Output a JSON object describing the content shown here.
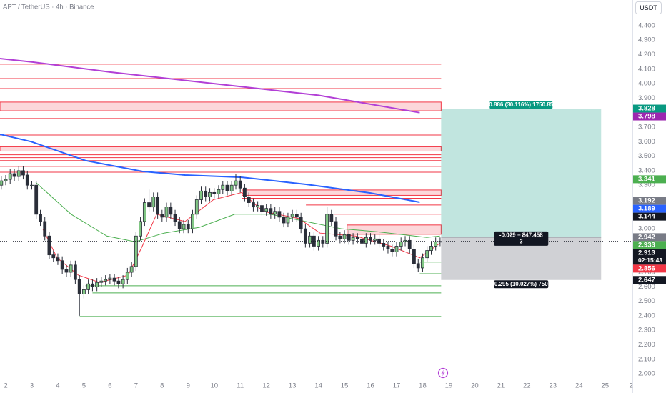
{
  "chart_data": {
    "type": "candlestick",
    "title": "APT / TetherUS · 4h · Binance",
    "currency": "USDT",
    "countdown": "02:15:43",
    "up_color": "#81c784",
    "down_color": "#2a2e39",
    "xlim": [
      1.78,
      26.05
    ],
    "ylim": [
      1.966,
      4.577
    ],
    "grid": false,
    "xticks": [
      2,
      3,
      4,
      5,
      6,
      7,
      8,
      9,
      10,
      11,
      12,
      13,
      14,
      15,
      16,
      17,
      18,
      19,
      20,
      21,
      22,
      23,
      24,
      25,
      {
        "value": 26,
        "label": "2"
      }
    ],
    "yticks": [
      {
        "value": 2.0,
        "label": "2.000"
      },
      {
        "value": 2.1,
        "label": "2.100"
      },
      {
        "value": 2.2,
        "label": "2.200"
      },
      {
        "value": 2.3,
        "label": "2.300"
      },
      {
        "value": 2.4,
        "label": "2.400"
      },
      {
        "value": 2.5,
        "label": "2.500"
      },
      {
        "value": 2.6,
        "label": "2.600"
      },
      {
        "value": 2.7,
        "label": "2.700"
      },
      {
        "value": 2.8,
        "label": "2.800"
      },
      {
        "value": 2.9,
        "label": "2.900"
      },
      {
        "value": 3.0,
        "label": "3.000"
      },
      {
        "value": 3.1,
        "label": "3.100"
      },
      {
        "value": 3.2,
        "label": "3.200"
      },
      {
        "value": 3.3,
        "label": "3.300"
      },
      {
        "value": 3.4,
        "label": "3.400"
      },
      {
        "value": 3.5,
        "label": "3.500"
      },
      {
        "value": 3.6,
        "label": "3.600"
      },
      {
        "value": 3.7,
        "label": "3.700"
      },
      {
        "value": 3.8,
        "label": "3.800"
      },
      {
        "value": 3.9,
        "label": "3.900"
      },
      {
        "value": 4.0,
        "label": "4.000"
      },
      {
        "value": 4.1,
        "label": "4.100"
      },
      {
        "value": 4.2,
        "label": "4.200"
      },
      {
        "value": 4.3,
        "label": "4.300"
      },
      {
        "value": 4.4,
        "label": "4.400"
      }
    ],
    "x": [
      1.83,
      2,
      2.17,
      2.33,
      2.5,
      2.67,
      2.83,
      3,
      3.17,
      3.33,
      3.5,
      3.67,
      3.83,
      4,
      4.17,
      4.33,
      4.5,
      4.67,
      4.83,
      5,
      5.17,
      5.33,
      5.5,
      5.67,
      5.83,
      6,
      6.17,
      6.33,
      6.5,
      6.67,
      6.83,
      7,
      7.17,
      7.33,
      7.5,
      7.67,
      7.83,
      8,
      8.17,
      8.33,
      8.5,
      8.67,
      8.83,
      9,
      9.17,
      9.33,
      9.5,
      9.67,
      9.83,
      10,
      10.17,
      10.33,
      10.5,
      10.67,
      10.83,
      11,
      11.17,
      11.33,
      11.5,
      11.67,
      11.83,
      12,
      12.17,
      12.33,
      12.5,
      12.67,
      12.83,
      13,
      13.17,
      13.33,
      13.5,
      13.67,
      13.83,
      14,
      14.17,
      14.33,
      14.5,
      14.67,
      14.83,
      15,
      15.17,
      15.33,
      15.5,
      15.67,
      15.83,
      16,
      16.17,
      16.33,
      16.5,
      16.67,
      16.83,
      17,
      17.17,
      17.33,
      17.5,
      17.67,
      17.83,
      18,
      18.17,
      18.33,
      18.5,
      18.67
    ],
    "open": [
      3.3,
      3.33,
      3.34,
      3.38,
      3.36,
      3.4,
      3.37,
      3.3,
      3.3,
      3.1,
      3.05,
      2.95,
      2.82,
      2.8,
      2.78,
      2.72,
      2.7,
      2.75,
      2.65,
      2.55,
      2.58,
      2.62,
      2.6,
      2.63,
      2.64,
      2.65,
      2.66,
      2.64,
      2.62,
      2.65,
      2.7,
      2.74,
      2.95,
      3.05,
      3.18,
      3.15,
      3.22,
      3.1,
      3.08,
      3.15,
      3.1,
      3.05,
      3.0,
      3.03,
      3.0,
      3.1,
      3.2,
      3.26,
      3.22,
      3.25,
      3.24,
      3.27,
      3.3,
      3.26,
      3.3,
      3.33,
      3.28,
      3.22,
      3.18,
      3.15,
      3.16,
      3.12,
      3.14,
      3.1,
      3.12,
      3.08,
      3.04,
      3.08,
      3.1,
      3.08,
      3.0,
      2.9,
      2.95,
      2.88,
      2.92,
      2.9,
      3.1,
      3.05,
      2.95,
      2.93,
      2.96,
      2.92,
      2.94,
      2.93,
      2.9,
      2.94,
      2.92,
      2.93,
      2.9,
      2.88,
      2.86,
      2.84,
      2.88,
      2.91,
      2.92,
      2.86,
      2.76,
      2.73,
      2.8,
      2.85,
      2.88,
      2.91
    ],
    "high": [
      3.36,
      3.37,
      3.41,
      3.41,
      3.43,
      3.43,
      3.4,
      3.33,
      3.33,
      3.13,
      3.08,
      2.98,
      2.85,
      2.83,
      2.81,
      2.75,
      2.78,
      2.78,
      2.68,
      2.61,
      2.65,
      2.65,
      2.66,
      2.67,
      2.68,
      2.69,
      2.69,
      2.67,
      2.68,
      2.73,
      2.77,
      2.98,
      3.08,
      3.21,
      3.27,
      3.25,
      3.25,
      3.13,
      3.18,
      3.18,
      3.13,
      3.08,
      3.06,
      3.06,
      3.13,
      3.23,
      3.29,
      3.29,
      3.28,
      3.28,
      3.3,
      3.33,
      3.33,
      3.33,
      3.38,
      3.36,
      3.31,
      3.25,
      3.21,
      3.19,
      3.19,
      3.17,
      3.17,
      3.15,
      3.15,
      3.11,
      3.11,
      3.13,
      3.13,
      3.11,
      3.03,
      2.98,
      2.98,
      2.95,
      2.95,
      3.15,
      3.13,
      3.08,
      2.98,
      2.99,
      2.99,
      2.97,
      2.97,
      2.96,
      2.97,
      2.97,
      2.96,
      2.96,
      2.93,
      2.91,
      2.89,
      2.91,
      2.94,
      2.95,
      2.95,
      2.89,
      2.79,
      2.83,
      2.88,
      2.91,
      2.94,
      2.94
    ],
    "low": [
      3.27,
      3.3,
      3.31,
      3.33,
      3.33,
      3.34,
      3.27,
      3.27,
      3.07,
      3.02,
      2.92,
      2.79,
      2.77,
      2.75,
      2.69,
      2.67,
      2.67,
      2.62,
      2.4,
      2.52,
      2.55,
      2.57,
      2.57,
      2.6,
      2.61,
      2.62,
      2.61,
      2.59,
      2.59,
      2.62,
      2.67,
      2.71,
      2.92,
      3.02,
      3.12,
      3.12,
      3.07,
      3.05,
      3.05,
      3.07,
      3.02,
      2.97,
      2.97,
      2.97,
      2.97,
      3.07,
      3.17,
      3.19,
      3.19,
      3.21,
      3.21,
      3.24,
      3.23,
      3.23,
      3.27,
      3.25,
      3.19,
      3.15,
      3.12,
      3.12,
      3.09,
      3.09,
      3.07,
      3.07,
      3.05,
      3.01,
      3.01,
      3.05,
      3.05,
      2.97,
      2.87,
      2.87,
      2.85,
      2.85,
      2.87,
      2.87,
      3.02,
      2.92,
      2.9,
      2.9,
      2.89,
      2.89,
      2.9,
      2.87,
      2.87,
      2.89,
      2.89,
      2.87,
      2.85,
      2.83,
      2.81,
      2.81,
      2.85,
      2.88,
      2.83,
      2.73,
      2.7,
      2.7,
      2.77,
      2.82,
      2.85,
      2.88
    ],
    "close": [
      3.33,
      3.34,
      3.38,
      3.36,
      3.4,
      3.37,
      3.3,
      3.3,
      3.1,
      3.05,
      2.95,
      2.82,
      2.8,
      2.78,
      2.72,
      2.7,
      2.75,
      2.65,
      2.55,
      2.58,
      2.62,
      2.6,
      2.63,
      2.64,
      2.65,
      2.66,
      2.64,
      2.62,
      2.65,
      2.7,
      2.74,
      2.95,
      3.05,
      3.18,
      3.15,
      3.22,
      3.1,
      3.08,
      3.15,
      3.1,
      3.05,
      3.0,
      3.03,
      3.0,
      3.1,
      3.2,
      3.26,
      3.22,
      3.25,
      3.24,
      3.27,
      3.3,
      3.26,
      3.3,
      3.33,
      3.28,
      3.22,
      3.18,
      3.15,
      3.16,
      3.12,
      3.14,
      3.1,
      3.12,
      3.08,
      3.04,
      3.08,
      3.1,
      3.08,
      3.0,
      2.9,
      2.95,
      2.88,
      2.92,
      2.9,
      3.1,
      3.05,
      2.95,
      2.93,
      2.96,
      2.92,
      2.94,
      2.93,
      2.9,
      2.94,
      2.92,
      2.93,
      2.9,
      2.88,
      2.86,
      2.84,
      2.88,
      2.91,
      2.92,
      2.86,
      2.76,
      2.73,
      2.8,
      2.85,
      2.88,
      2.91,
      2.913
    ],
    "indicators": [
      {
        "color": "#b23fd6",
        "width": 2,
        "x": [
          1.78,
          3,
          6,
          10,
          14,
          17.89
        ],
        "values": [
          4.173,
          4.15,
          4.08,
          4.0,
          3.92,
          3.8
        ]
      },
      {
        "color": "#2962ff",
        "width": 2,
        "x": [
          1.78,
          2.98,
          5.06,
          7.24,
          8.88,
          11.06,
          13.52,
          15.98,
          17.89
        ],
        "values": [
          3.651,
          3.6,
          3.47,
          3.395,
          3.37,
          3.355,
          3.306,
          3.247,
          3.183
        ]
      },
      {
        "color": "#4caf50",
        "width": 1,
        "x": [
          3.15,
          4.51,
          5.88,
          6.97,
          8.07,
          9.43,
          10.79,
          12.15,
          13.52,
          14.88,
          16.25,
          18.16,
          18.66
        ],
        "values": [
          3.32,
          3.1,
          2.95,
          2.91,
          2.97,
          3.01,
          3.1,
          3.1,
          3.05,
          3.0,
          2.98,
          2.94,
          2.95
        ]
      },
      {
        "color": "#f23645",
        "width": 1,
        "x": [
          3.42,
          3.97,
          4.79,
          5.6,
          6.7,
          7.24,
          7.79,
          8.88,
          9.97,
          11.06,
          11.88,
          13.25,
          14.06,
          15.43,
          16.79,
          17.89,
          18.66
        ],
        "values": [
          3.0,
          2.8,
          2.68,
          2.63,
          2.68,
          2.88,
          3.1,
          3.05,
          3.2,
          3.25,
          3.12,
          3.07,
          2.97,
          2.95,
          2.88,
          2.8,
          2.9
        ]
      }
    ],
    "levels": [
      {
        "price": 4.134,
        "start": 1.78,
        "end": 18.71,
        "color": "#f23645"
      },
      {
        "price": 4.035,
        "start": 1.78,
        "end": 18.71,
        "color": "#f23645"
      },
      {
        "price": 3.966,
        "start": 1.78,
        "end": 18.71,
        "color": "#f23645"
      },
      {
        "price": 3.76,
        "start": 1.78,
        "end": 18.71,
        "color": "#f23645"
      },
      {
        "price": 3.646,
        "start": 1.78,
        "end": 18.71,
        "color": "#f23645"
      },
      {
        "price": 3.51,
        "start": 1.78,
        "end": 18.71,
        "color": "#f23645"
      },
      {
        "price": 3.49,
        "start": 1.78,
        "end": 18.71,
        "color": "#f23645"
      },
      {
        "price": 3.47,
        "start": 1.78,
        "end": 18.71,
        "color": "#f23645"
      },
      {
        "price": 3.43,
        "start": 1.78,
        "end": 18.71,
        "color": "#f23645"
      },
      {
        "price": 3.39,
        "start": 1.78,
        "end": 18.71,
        "color": "#f23645"
      },
      {
        "price": 3.21,
        "start": 11.07,
        "end": 18.71,
        "color": "#f23645"
      },
      {
        "price": 3.164,
        "start": 13.52,
        "end": 18.71,
        "color": "#f23645"
      },
      {
        "price": 3.1,
        "start": 14.61,
        "end": 18.71,
        "color": "#f23645"
      },
      {
        "price": 2.607,
        "start": 5.06,
        "end": 18.71,
        "color": "#4caf50"
      },
      {
        "price": 2.558,
        "start": 5.33,
        "end": 18.71,
        "color": "#4caf50"
      },
      {
        "price": 2.395,
        "start": 4.84,
        "end": 18.71,
        "color": "#4caf50"
      },
      {
        "price": 2.77,
        "start": 17.89,
        "end": 18.71,
        "color": "#4caf50"
      },
      {
        "price": 2.69,
        "start": 17.89,
        "end": 18.71,
        "color": "#4caf50"
      }
    ],
    "zones": [
      {
        "top": 3.873,
        "bottom": 3.813,
        "start": 1.78,
        "end": 18.71,
        "color": "#f23645"
      },
      {
        "top": 3.565,
        "bottom": 3.535,
        "start": 1.78,
        "end": 18.71,
        "color": "#f23645"
      },
      {
        "top": 3.267,
        "bottom": 3.23,
        "start": 11.07,
        "end": 18.71,
        "color": "#f23645"
      },
      {
        "top": 3.026,
        "bottom": 2.962,
        "start": 15.1,
        "end": 18.71,
        "color": "#f23645"
      }
    ],
    "position": {
      "start": 18.71,
      "end": 24.85,
      "entry": 2.942,
      "target": 3.828,
      "stop": 2.647,
      "target_label": "0.886 (30.116%) 1750.85",
      "center_label": [
        "-0.029 − 847.458",
        "3"
      ],
      "stop_label": "0.295 (10.027%) 750"
    },
    "last_price": 2.913,
    "price_tags": [
      {
        "value": 3.828,
        "color": "#089981"
      },
      {
        "value": 3.798,
        "color": "#9c27b0"
      },
      {
        "value": 3.341,
        "color": "#4caf50"
      },
      {
        "value": 3.192,
        "color": "#787b86"
      },
      {
        "value": 3.189,
        "color": "#2962ff"
      },
      {
        "value": 3.144,
        "color": "#131722"
      },
      {
        "value": 2.942,
        "color": "#787b86"
      },
      {
        "value": 2.933,
        "color": "#4caf50"
      },
      {
        "value": 2.913,
        "color": "#131722"
      },
      {
        "value": 2.856,
        "color": "#f23645"
      },
      {
        "value": 2.647,
        "color": "#131722"
      }
    ]
  }
}
